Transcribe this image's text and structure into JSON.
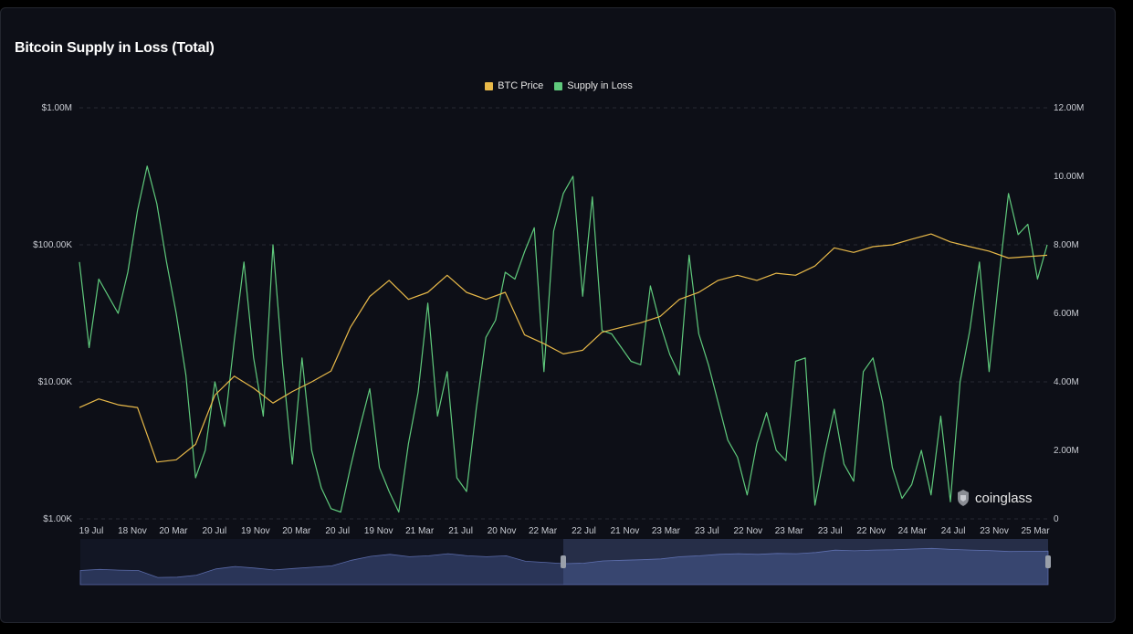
{
  "chart_data": {
    "type": "line",
    "title": "Bitcoin Supply in Loss (Total)",
    "legend": {
      "placement": "top-center",
      "items": [
        "BTC Price",
        "Supply in Loss"
      ]
    },
    "colors": {
      "BTC Price": "#e8b949",
      "Supply in Loss": "#5fc97c",
      "background": "#0d0f17",
      "grid": "#262a33",
      "navigator_fill": "#2a3558"
    },
    "grid": true,
    "x_ticks": [
      "19 Jul",
      "18 Nov",
      "20 Mar",
      "20 Jul",
      "19 Nov",
      "20 Mar",
      "20 Jul",
      "19 Nov",
      "21 Mar",
      "21 Jul",
      "20 Nov",
      "22 Mar",
      "22 Jul",
      "21 Nov",
      "23 Mar",
      "23 Jul",
      "22 Nov",
      "23 Mar",
      "23 Jul",
      "22 Nov",
      "24 Mar",
      "24 Jul",
      "23 Nov",
      "25 Mar"
    ],
    "y_left": {
      "scale": "log",
      "ticks": [
        "$1.00K",
        "$10.00K",
        "$100.00K",
        "$1.00M"
      ],
      "range": [
        1000,
        1000000
      ]
    },
    "y_right": {
      "scale": "linear",
      "ticks": [
        "0",
        "2.00M",
        "4.00M",
        "6.00M",
        "8.00M",
        "10.00M",
        "12.00M"
      ],
      "range": [
        0,
        12000000
      ]
    },
    "x_index_range": [
      0,
      100
    ],
    "series": [
      {
        "name": "BTC Price",
        "axis": "left",
        "x": [
          0,
          2,
          4,
          6,
          8,
          10,
          12,
          14,
          16,
          18,
          20,
          22,
          24,
          26,
          28,
          30,
          32,
          34,
          36,
          38,
          40,
          42,
          44,
          46,
          48,
          50,
          52,
          54,
          56,
          58,
          60,
          62,
          64,
          66,
          68,
          70,
          72,
          74,
          76,
          78,
          80,
          82,
          84,
          86,
          88,
          90,
          92,
          94,
          96,
          98,
          100
        ],
        "values": [
          6500,
          7500,
          6800,
          6500,
          2600,
          2700,
          3500,
          8000,
          11000,
          9000,
          7000,
          8500,
          10000,
          12000,
          25000,
          42000,
          55000,
          40000,
          45000,
          60000,
          45000,
          40000,
          45000,
          22000,
          19000,
          16000,
          17000,
          23000,
          25000,
          27000,
          30000,
          40000,
          45000,
          55000,
          60000,
          55000,
          62000,
          60000,
          70000,
          95000,
          88000,
          97000,
          100000,
          110000,
          120000,
          105000,
          97000,
          90000,
          80000,
          82000,
          84000
        ]
      },
      {
        "name": "Supply in Loss",
        "axis": "right",
        "x": [
          0,
          1,
          2,
          3,
          4,
          5,
          6,
          7,
          8,
          9,
          10,
          11,
          12,
          13,
          14,
          15,
          16,
          17,
          18,
          19,
          20,
          21,
          22,
          23,
          24,
          25,
          26,
          27,
          28,
          29,
          30,
          31,
          32,
          33,
          34,
          35,
          36,
          37,
          38,
          39,
          40,
          41,
          42,
          43,
          44,
          45,
          46,
          47,
          48,
          49,
          50,
          51,
          52,
          53,
          54,
          55,
          56,
          57,
          58,
          59,
          60,
          61,
          62,
          63,
          64,
          65,
          66,
          67,
          68,
          69,
          70,
          71,
          72,
          73,
          74,
          75,
          76,
          77,
          78,
          79,
          80,
          81,
          82,
          83,
          84,
          85,
          86,
          87,
          88,
          89,
          90,
          91,
          92,
          93,
          94,
          95,
          96,
          97,
          98,
          99,
          100
        ],
        "values": [
          7500,
          5000,
          7000,
          6500,
          6000,
          7200,
          9000,
          10300,
          9200,
          7500,
          6000,
          4200,
          1200,
          2000,
          4000,
          2700,
          5200,
          7500,
          4700,
          3000,
          8000,
          4500,
          1600,
          4700,
          2000,
          900,
          300,
          200,
          1500,
          2700,
          3800,
          1500,
          800,
          200,
          2200,
          3700,
          6300,
          3000,
          4300,
          1200,
          800,
          3200,
          5300,
          5800,
          7200,
          7000,
          7800,
          8500,
          4300,
          8400,
          9500,
          10000,
          6500,
          9400,
          5500,
          5400,
          5000,
          4600,
          4500,
          6800,
          5700,
          4800,
          4200,
          7700,
          5400,
          4500,
          3400,
          2300,
          1800,
          700,
          2200,
          3100,
          2000,
          1700,
          4600,
          4700,
          400,
          1900,
          3200,
          1600,
          1100,
          4300,
          4700,
          3400,
          1500,
          600,
          1000,
          2000,
          700,
          3000,
          500,
          4000,
          5500,
          7500,
          4300,
          7000,
          9500,
          8300,
          8600,
          7000,
          8000
        ]
      }
    ],
    "navigator": {
      "visible": true
    },
    "watermark": "coinglass"
  }
}
